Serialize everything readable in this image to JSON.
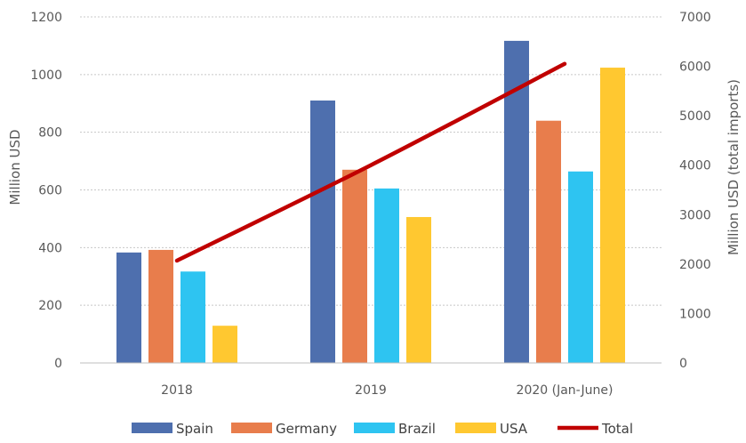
{
  "chart_data": {
    "type": "bar",
    "categories": [
      "2018",
      "2019",
      "2020 (Jan-June)"
    ],
    "series": [
      {
        "name": "Spain",
        "values": [
          383,
          910,
          1117
        ],
        "color": "#4E6FAE"
      },
      {
        "name": "Germany",
        "values": [
          392,
          670,
          840
        ],
        "color": "#E87D4C"
      },
      {
        "name": "Brazil",
        "values": [
          317,
          605,
          664
        ],
        "color": "#2EC4F1"
      },
      {
        "name": "USA",
        "values": [
          129,
          506,
          1024
        ],
        "color": "#FFC830"
      }
    ],
    "line_series": {
      "name": "Total",
      "axis": "right",
      "values": [
        2070,
        4000,
        6050
      ],
      "color": "#C00000"
    },
    "ylabel": "Million USD",
    "y2label": "Million USD (total imports)",
    "ylim": [
      0,
      1200
    ],
    "y2lim": [
      0,
      7000
    ],
    "yticks": [
      "0",
      "200",
      "400",
      "600",
      "800",
      "1000",
      "1200"
    ],
    "y2ticks": [
      "0",
      "1000",
      "2000",
      "3000",
      "4000",
      "5000",
      "6000",
      "7000"
    ],
    "grid": true,
    "legend_position": "bottom"
  }
}
